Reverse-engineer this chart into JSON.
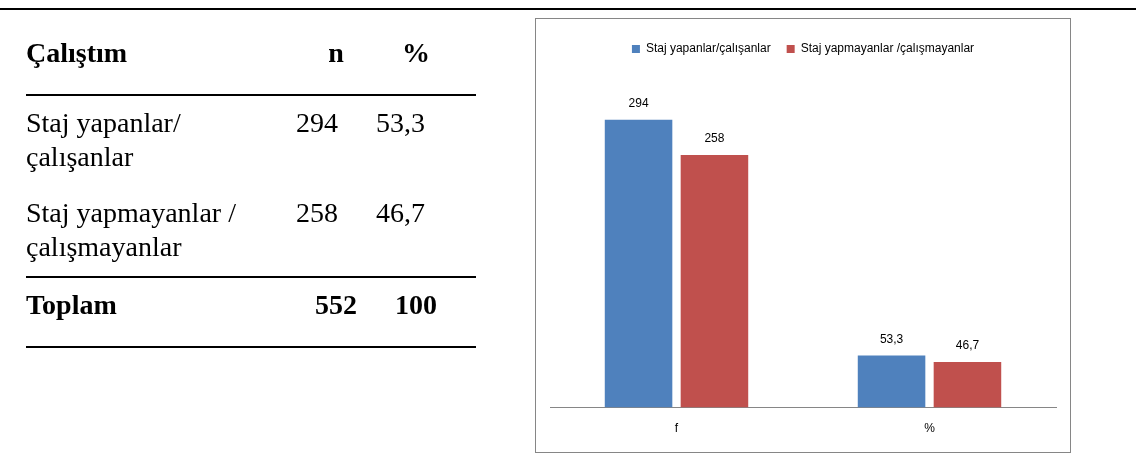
{
  "chart_data": [
    {
      "type": "other",
      "annotations": [
        "Çalıştım",
        "n",
        "%",
        "Staj yapanlar/ çalışanlar",
        "294",
        "53,3",
        "Staj yapmayanlar / çalışmayanlar",
        "258",
        "46,7",
        "Toplam",
        "552",
        "100"
      ]
    },
    {
      "type": "bar",
      "categories": [
        "f",
        "%"
      ],
      "legend": "top",
      "grid": false,
      "tick_labels": "x",
      "series": [
        {
          "name": "Staj yapanlar/çalışanlar",
          "color": "#4f81bd",
          "values": [
            294,
            53.3
          ],
          "value_labels": [
            "294",
            "53,3"
          ]
        },
        {
          "name": "Staj yapmayanlar /çalışmayanlar",
          "color": "#c0504d",
          "values": [
            258,
            46.7
          ],
          "value_labels": [
            "258",
            "46,7"
          ]
        }
      ]
    }
  ]
}
